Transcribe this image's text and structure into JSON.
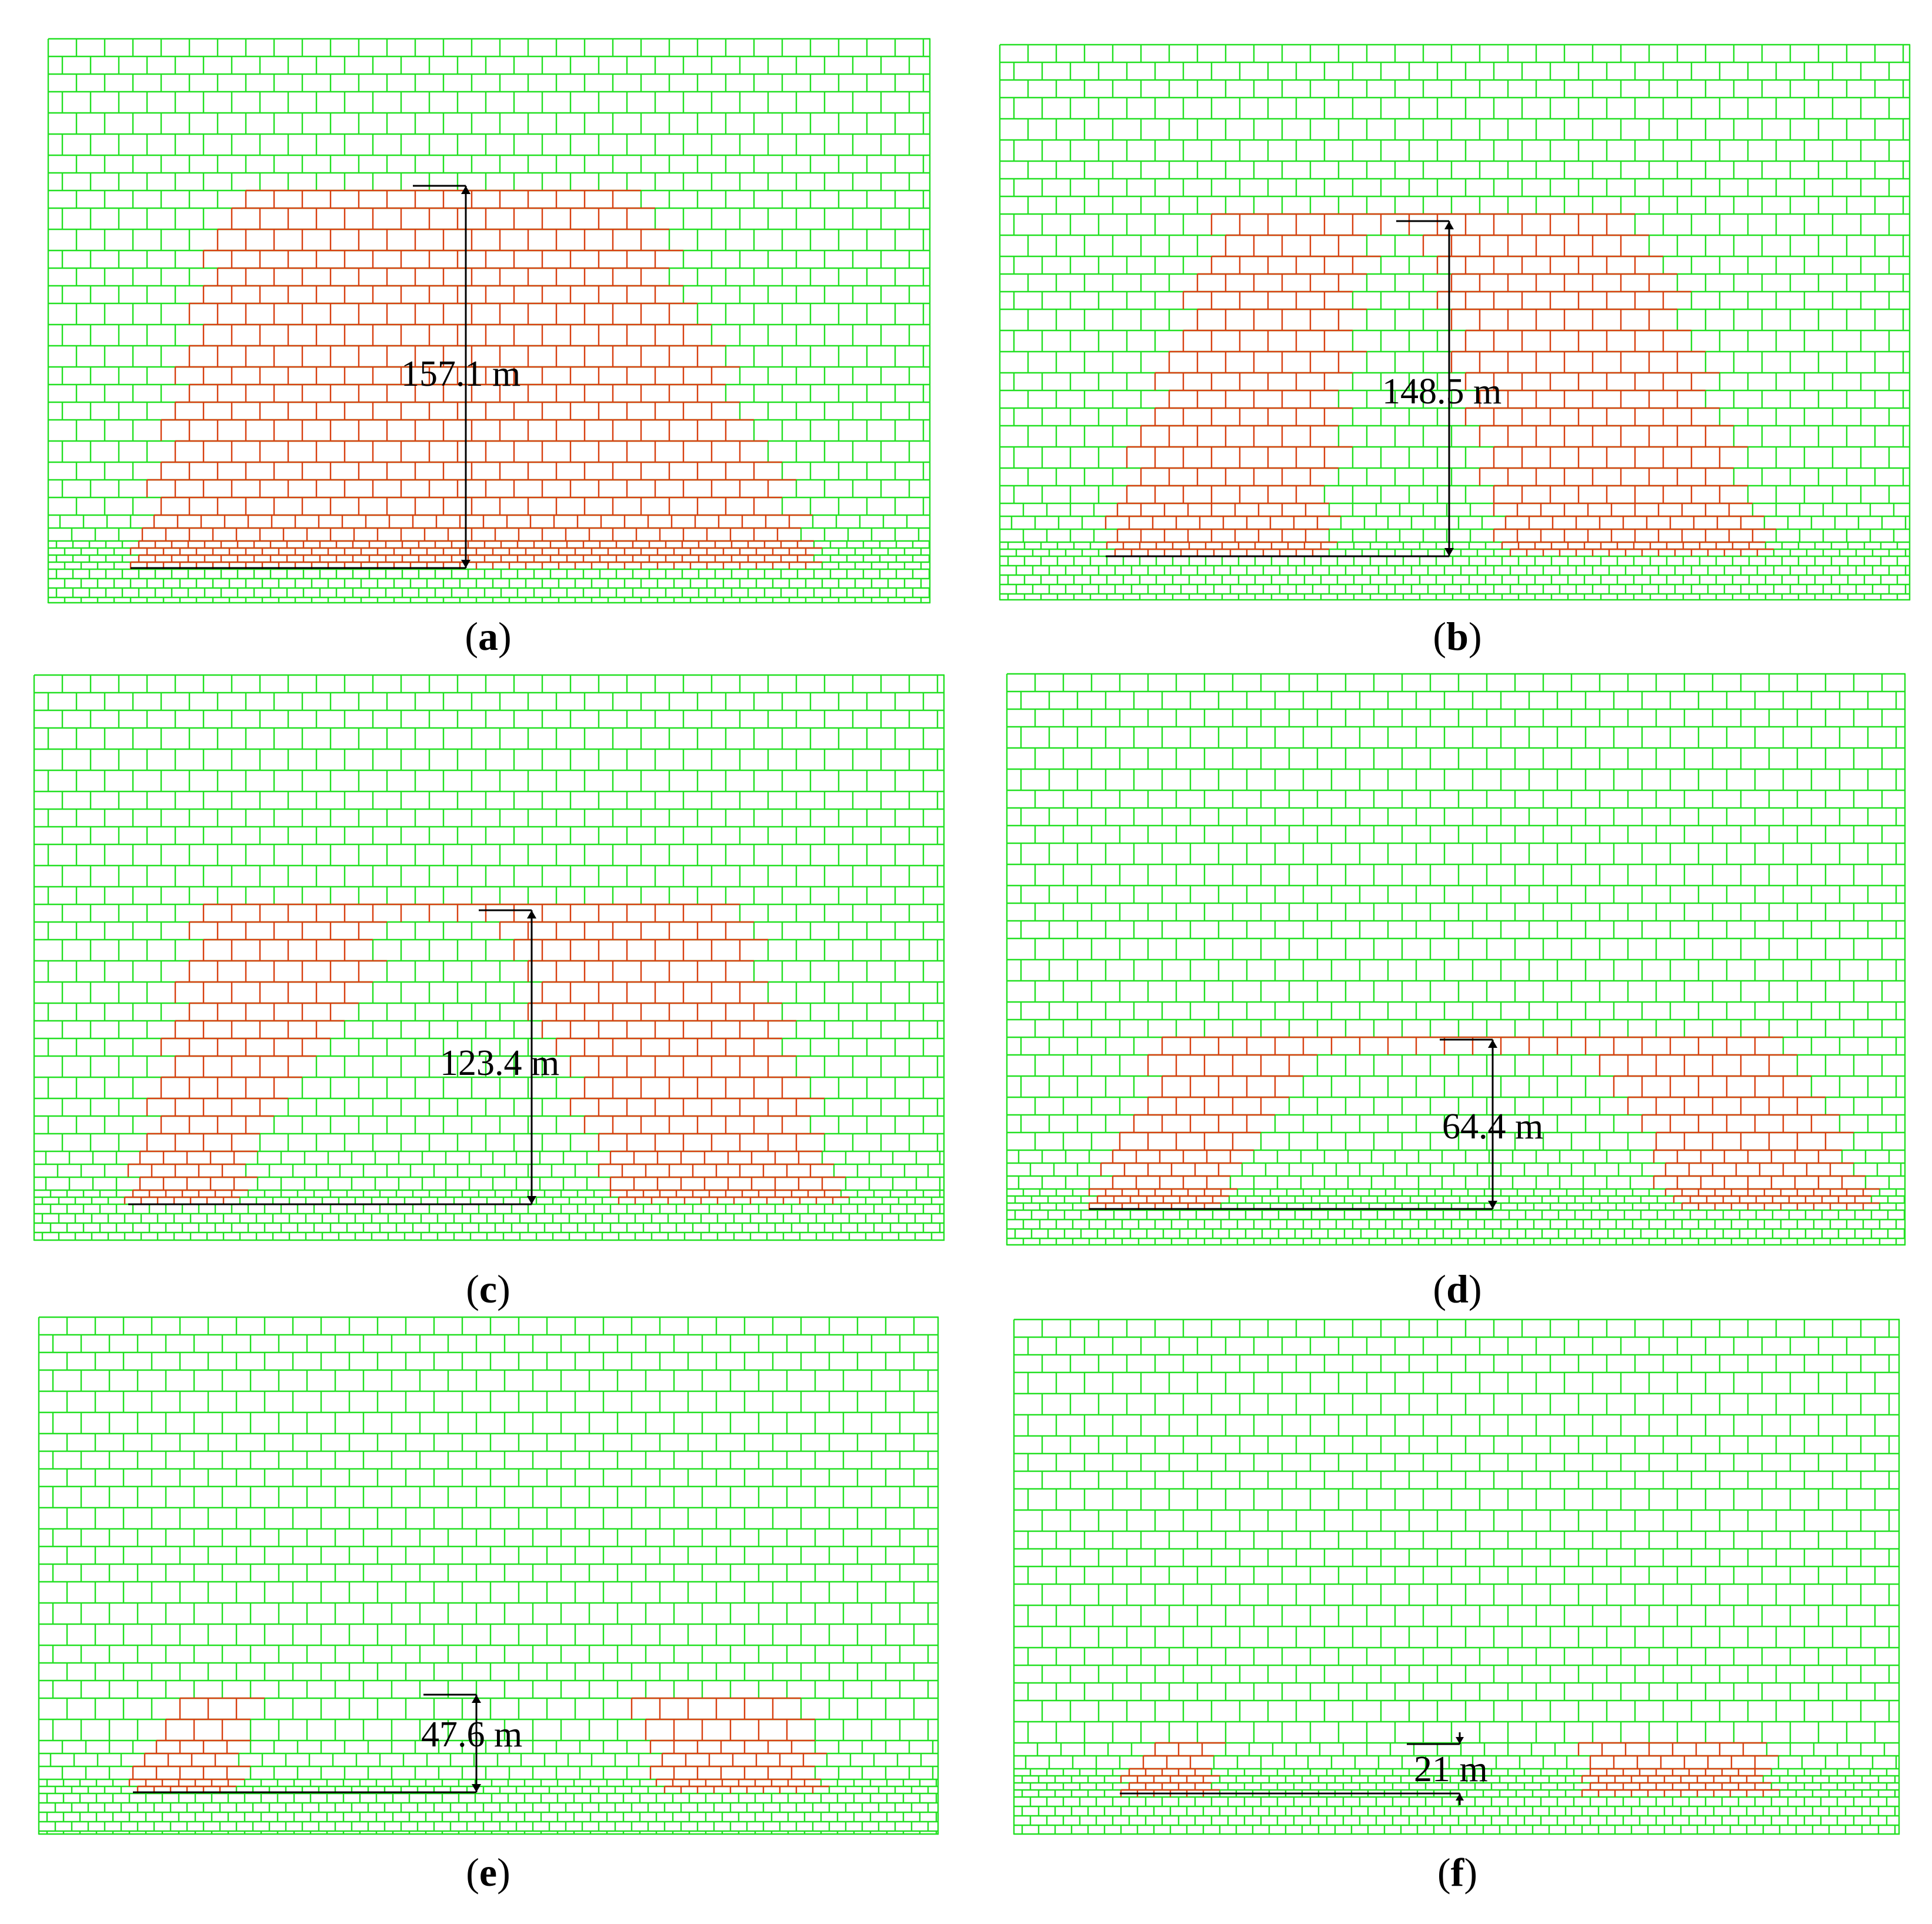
{
  "colors": {
    "rock_mesh": "#22e022",
    "failed_blocks": "#d84010",
    "dimension_line": "#000000",
    "background": "#ffffff"
  },
  "panels": [
    {
      "label_open": "(",
      "letter": "a",
      "label_close": ")",
      "height_label": "157.1 m",
      "height_m": 157.1
    },
    {
      "label_open": "(",
      "letter": "b",
      "label_close": ")",
      "height_label": "148.5 m",
      "height_m": 148.5
    },
    {
      "label_open": "(",
      "letter": "c",
      "label_close": ")",
      "height_label": "123.4 m",
      "height_m": 123.4
    },
    {
      "label_open": "(",
      "letter": "d",
      "label_close": ")",
      "height_label": "64.4 m",
      "height_m": 64.4
    },
    {
      "label_open": "(",
      "letter": "e",
      "label_close": ")",
      "height_label": "47.6 m",
      "height_m": 47.6
    },
    {
      "label_open": "(",
      "letter": "f",
      "label_close": ")",
      "height_label": "21 m",
      "height_m": 21
    }
  ]
}
